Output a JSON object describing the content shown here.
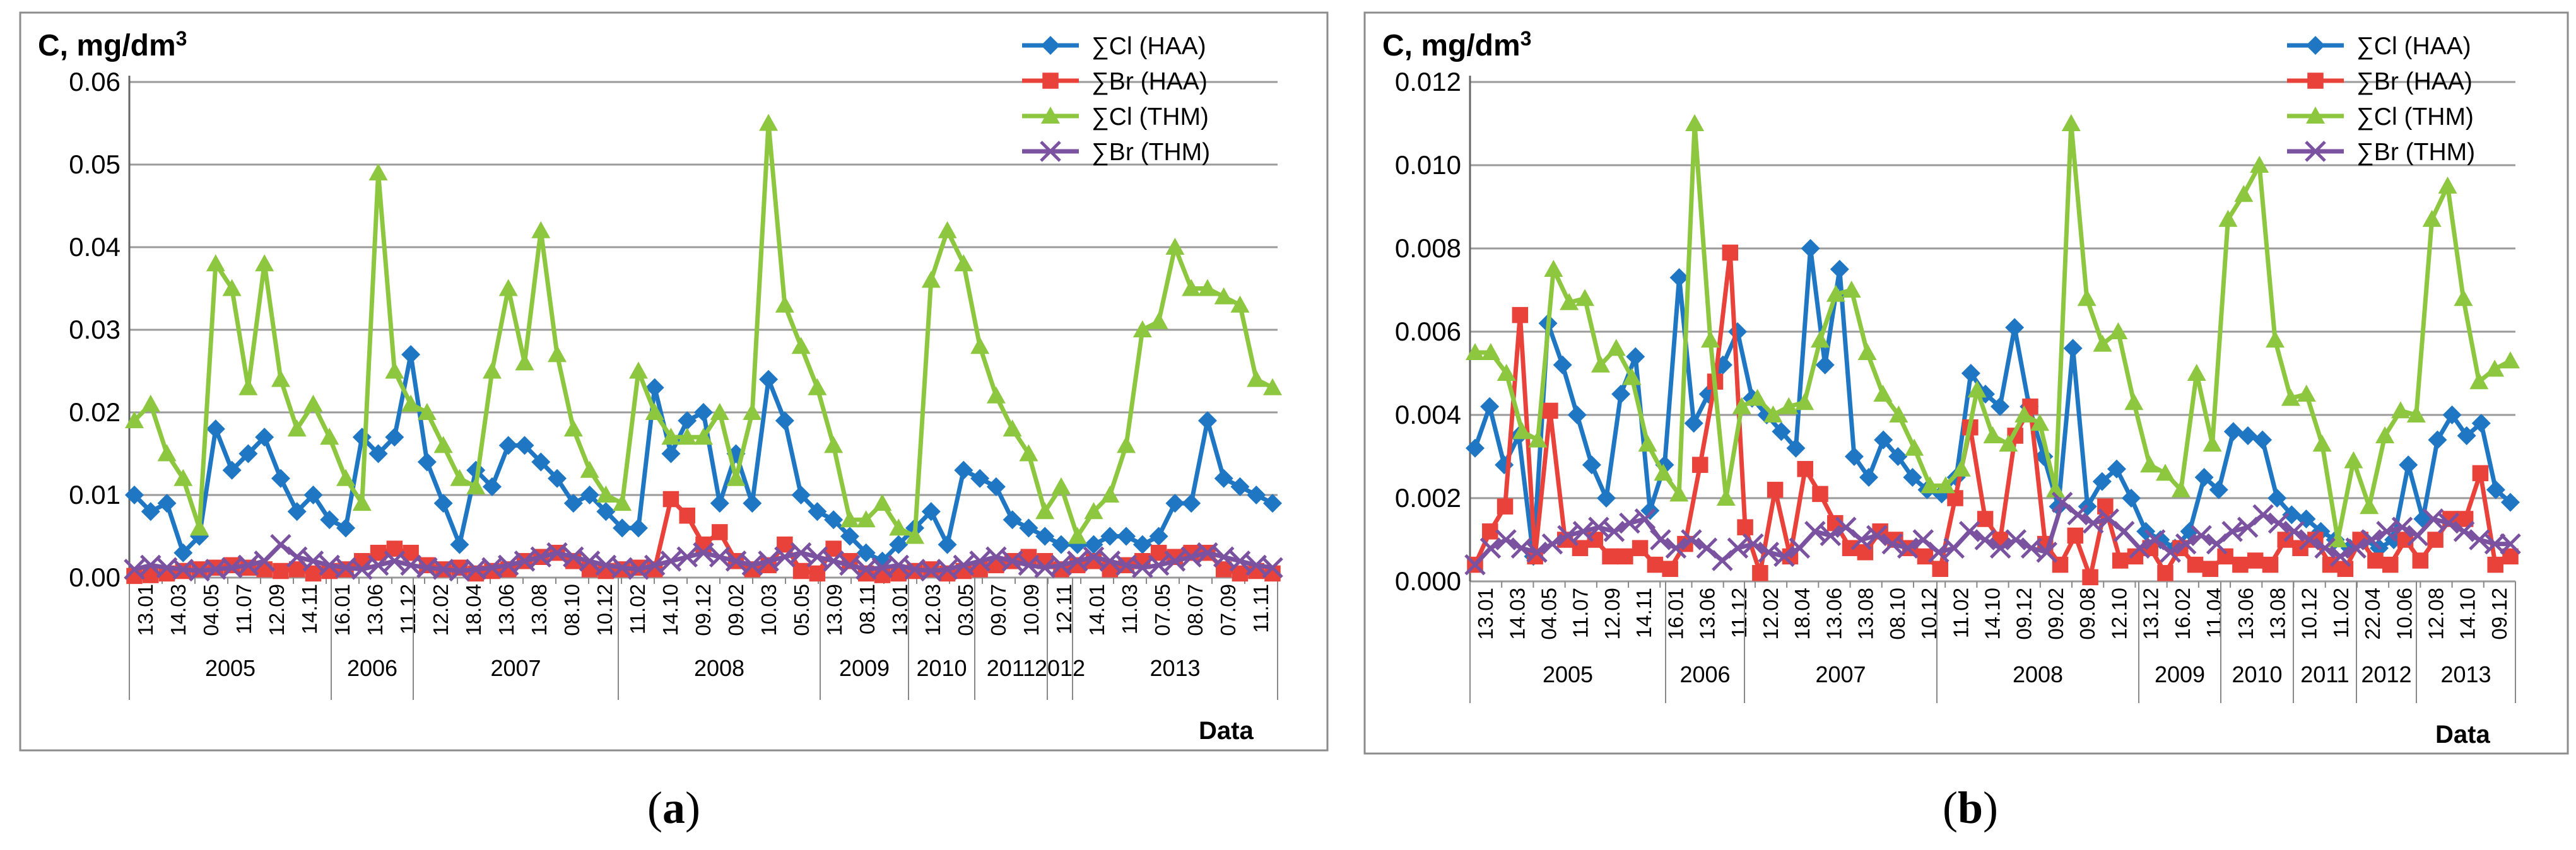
{
  "chart_data": [
    {
      "panel": "a",
      "type": "line",
      "caption": "a",
      "title": "C, mg/dm",
      "title_sup": "3",
      "xlabel": "Data",
      "ylim": [
        0,
        0.06
      ],
      "ytick_labels": [
        "0.00",
        "0.01",
        "0.02",
        "0.03",
        "0.04",
        "0.05",
        "0.06"
      ],
      "grid": true,
      "legend_position": "top-right",
      "x_tick_labels": [
        "13.01",
        "14.03",
        "04.05",
        "11.07",
        "12.09",
        "14.11",
        "16.01",
        "13.06",
        "11.12",
        "12.02",
        "18.04",
        "13.06",
        "13.08",
        "08.10",
        "10.12",
        "11.02",
        "14.10",
        "09.12",
        "09.02",
        "10.03",
        "05.05",
        "13.09",
        "08.11",
        "13.01",
        "12.03",
        "03.05",
        "09.07",
        "10.09",
        "12.11",
        "14.01",
        "11.03",
        "07.05",
        "08.07",
        "07.09",
        "11.11"
      ],
      "year_labels": [
        "2005",
        "2006",
        "2007",
        "2008",
        "2009",
        "2010",
        "2011",
        "2012",
        "2013"
      ],
      "series": [
        {
          "name": "∑Cl (HAA)",
          "color": "#1f77c4",
          "marker": "diamond",
          "values": [
            0.01,
            0.008,
            0.009,
            0.003,
            0.005,
            0.018,
            0.013,
            0.015,
            0.017,
            0.012,
            0.008,
            0.01,
            0.007,
            0.006,
            0.017,
            0.015,
            0.017,
            0.027,
            0.014,
            0.009,
            0.004,
            0.013,
            0.011,
            0.016,
            0.016,
            0.014,
            0.012,
            0.009,
            0.01,
            0.008,
            0.006,
            0.006,
            0.023,
            0.015,
            0.019,
            0.02,
            0.009,
            0.015,
            0.009,
            0.024,
            0.019,
            0.01,
            0.008,
            0.007,
            0.005,
            0.003,
            0.002,
            0.004,
            0.006,
            0.008,
            0.004,
            0.013,
            0.012,
            0.011,
            0.007,
            0.006,
            0.005,
            0.004,
            0.004,
            0.004,
            0.005,
            0.005,
            0.004,
            0.005,
            0.009,
            0.009,
            0.019,
            0.012,
            0.011,
            0.01,
            0.009
          ]
        },
        {
          "name": "∑Br (HAA)",
          "color": "#e8423a",
          "marker": "square",
          "values": [
            0.0002,
            0.0003,
            0.0005,
            0.0008,
            0.001,
            0.0012,
            0.0015,
            0.0012,
            0.001,
            0.0008,
            0.001,
            0.0005,
            0.0008,
            0.001,
            0.002,
            0.003,
            0.0035,
            0.003,
            0.0015,
            0.001,
            0.0012,
            0.0005,
            0.0008,
            0.001,
            0.002,
            0.0025,
            0.003,
            0.002,
            0.001,
            0.0008,
            0.001,
            0.0012,
            0.001,
            0.0095,
            0.0075,
            0.004,
            0.0055,
            0.002,
            0.001,
            0.0015,
            0.004,
            0.0008,
            0.0005,
            0.0035,
            0.002,
            0.0005,
            0.0003,
            0.0005,
            0.0008,
            0.001,
            0.0005,
            0.0008,
            0.001,
            0.0015,
            0.002,
            0.0025,
            0.002,
            0.001,
            0.0015,
            0.002,
            0.001,
            0.0015,
            0.002,
            0.003,
            0.0025,
            0.003,
            0.003,
            0.001,
            0.0005,
            0.0008,
            0.0005
          ]
        },
        {
          "name": "∑Cl (THM)",
          "color": "#8dc63f",
          "marker": "triangle",
          "values": [
            0.019,
            0.021,
            0.015,
            0.012,
            0.006,
            0.038,
            0.035,
            0.023,
            0.038,
            0.024,
            0.018,
            0.021,
            0.017,
            0.012,
            0.009,
            0.049,
            0.025,
            0.021,
            0.02,
            0.016,
            0.012,
            0.011,
            0.025,
            0.035,
            0.026,
            0.042,
            0.027,
            0.018,
            0.013,
            0.01,
            0.009,
            0.025,
            0.02,
            0.017,
            0.017,
            0.017,
            0.02,
            0.012,
            0.02,
            0.055,
            0.033,
            0.028,
            0.023,
            0.016,
            0.007,
            0.007,
            0.009,
            0.006,
            0.005,
            0.036,
            0.042,
            0.038,
            0.028,
            0.022,
            0.018,
            0.015,
            0.008,
            0.011,
            0.005,
            0.008,
            0.01,
            0.016,
            0.03,
            0.031,
            0.04,
            0.035,
            0.035,
            0.034,
            0.033,
            0.024,
            0.023
          ]
        },
        {
          "name": "∑Br (THM)",
          "color": "#7b52a0",
          "marker": "x",
          "values": [
            0.001,
            0.0015,
            0.0012,
            0.001,
            0.0008,
            0.001,
            0.0012,
            0.0015,
            0.002,
            0.004,
            0.0025,
            0.002,
            0.0015,
            0.0012,
            0.001,
            0.0015,
            0.002,
            0.0015,
            0.0012,
            0.001,
            0.0008,
            0.001,
            0.0012,
            0.0015,
            0.002,
            0.0025,
            0.003,
            0.0025,
            0.002,
            0.0015,
            0.0012,
            0.001,
            0.0015,
            0.002,
            0.0025,
            0.003,
            0.0025,
            0.002,
            0.0015,
            0.002,
            0.0025,
            0.003,
            0.0025,
            0.002,
            0.0015,
            0.001,
            0.0012,
            0.0015,
            0.001,
            0.0008,
            0.001,
            0.0015,
            0.002,
            0.0025,
            0.002,
            0.0015,
            0.0012,
            0.0015,
            0.002,
            0.0025,
            0.002,
            0.0015,
            0.0012,
            0.0015,
            0.002,
            0.0025,
            0.003,
            0.0025,
            0.002,
            0.0015,
            0.0012
          ]
        }
      ]
    },
    {
      "panel": "b",
      "type": "line",
      "caption": "b",
      "title": "C, mg/dm",
      "title_sup": "3",
      "xlabel": "Data",
      "ylim": [
        0,
        0.012
      ],
      "ytick_labels": [
        "0.000",
        "0.002",
        "0.004",
        "0.006",
        "0.008",
        "0.010",
        "0.012"
      ],
      "grid": true,
      "legend_position": "top-right",
      "x_tick_labels": [
        "13.01",
        "14.03",
        "04.05",
        "11.07",
        "12.09",
        "14.11",
        "16.01",
        "13.06",
        "11.12",
        "12.02",
        "18.04",
        "13.06",
        "13.08",
        "08.10",
        "10.12",
        "11.02",
        "14.10",
        "09.12",
        "09.02",
        "09.08",
        "12.10",
        "13.12",
        "16.02",
        "11.04",
        "13.06",
        "13.08",
        "10.12",
        "11.02",
        "22.04",
        "10.06",
        "12.08",
        "14.10",
        "09.12"
      ],
      "year_labels": [
        "2005",
        "2006",
        "2007",
        "2008",
        "2009",
        "2010",
        "2011",
        "2012",
        "2013"
      ],
      "series": [
        {
          "name": "∑Cl (HAA)",
          "color": "#1f77c4",
          "marker": "diamond",
          "values": [
            0.0032,
            0.0042,
            0.0028,
            0.0035,
            0.0006,
            0.0062,
            0.0052,
            0.004,
            0.0028,
            0.002,
            0.0045,
            0.0054,
            0.0017,
            0.0028,
            0.0073,
            0.0038,
            0.0045,
            0.0052,
            0.006,
            0.0044,
            0.004,
            0.0036,
            0.0032,
            0.008,
            0.0052,
            0.0075,
            0.003,
            0.0025,
            0.0034,
            0.003,
            0.0025,
            0.0022,
            0.0021,
            0.0025,
            0.005,
            0.0045,
            0.0042,
            0.0061,
            0.0042,
            0.003,
            0.0018,
            0.0056,
            0.0018,
            0.0024,
            0.0027,
            0.002,
            0.0012,
            0.001,
            0.0008,
            0.0012,
            0.0025,
            0.0022,
            0.0036,
            0.0035,
            0.0034,
            0.002,
            0.0016,
            0.0015,
            0.0012,
            0.001,
            0.0008,
            0.001,
            0.0008,
            0.001,
            0.0028,
            0.0015,
            0.0034,
            0.004,
            0.0035,
            0.0038,
            0.0022,
            0.0019
          ]
        },
        {
          "name": "∑Br (HAA)",
          "color": "#e8423a",
          "marker": "square",
          "values": [
            0.0004,
            0.0012,
            0.0018,
            0.0064,
            0.0006,
            0.0041,
            0.001,
            0.0008,
            0.001,
            0.0006,
            0.0006,
            0.0008,
            0.0004,
            0.0003,
            0.0009,
            0.0028,
            0.0048,
            0.0079,
            0.0013,
            0.0002,
            0.0022,
            0.0006,
            0.0027,
            0.0021,
            0.0014,
            0.0008,
            0.0007,
            0.0012,
            0.001,
            0.0008,
            0.0006,
            0.0003,
            0.002,
            0.0037,
            0.0015,
            0.001,
            0.0035,
            0.0042,
            0.0009,
            0.0004,
            0.0011,
            0.0001,
            0.0018,
            0.0005,
            0.0006,
            0.0008,
            0.0002,
            0.0008,
            0.0004,
            0.0003,
            0.0006,
            0.0004,
            0.0005,
            0.0004,
            0.001,
            0.0008,
            0.001,
            0.0004,
            0.0003,
            0.001,
            0.0005,
            0.0004,
            0.001,
            0.0005,
            0.001,
            0.0015,
            0.0015,
            0.0026,
            0.0004,
            0.0006
          ]
        },
        {
          "name": "∑Cl (THM)",
          "color": "#8dc63f",
          "marker": "triangle",
          "values": [
            0.0055,
            0.0055,
            0.005,
            0.0036,
            0.0034,
            0.0075,
            0.0067,
            0.0068,
            0.0052,
            0.0056,
            0.0049,
            0.0033,
            0.0026,
            0.0021,
            0.011,
            0.0058,
            0.002,
            0.0042,
            0.0044,
            0.004,
            0.0042,
            0.0043,
            0.0058,
            0.0069,
            0.007,
            0.0055,
            0.0045,
            0.004,
            0.0032,
            0.0023,
            0.0023,
            0.0027,
            0.0046,
            0.0035,
            0.0033,
            0.004,
            0.0038,
            0.0022,
            0.011,
            0.0068,
            0.0057,
            0.006,
            0.0043,
            0.0028,
            0.0026,
            0.0022,
            0.005,
            0.0033,
            0.0087,
            0.0093,
            0.01,
            0.0058,
            0.0044,
            0.0045,
            0.0033,
            0.001,
            0.0029,
            0.0018,
            0.0035,
            0.0041,
            0.004,
            0.0087,
            0.0095,
            0.0068,
            0.0048,
            0.0051,
            0.0053
          ]
        },
        {
          "name": "∑Br (THM)",
          "color": "#7b52a0",
          "marker": "x",
          "values": [
            0.0004,
            0.0008,
            0.001,
            0.0008,
            0.0007,
            0.0009,
            0.0011,
            0.0012,
            0.0013,
            0.0012,
            0.0014,
            0.0015,
            0.001,
            0.0008,
            0.001,
            0.0008,
            0.0005,
            0.0008,
            0.0009,
            0.0007,
            0.0006,
            0.0008,
            0.0012,
            0.0011,
            0.0013,
            0.001,
            0.0011,
            0.0009,
            0.0008,
            0.001,
            0.0007,
            0.0008,
            0.0012,
            0.001,
            0.0008,
            0.001,
            0.0008,
            0.0007,
            0.0019,
            0.0016,
            0.0014,
            0.0015,
            0.0012,
            0.0008,
            0.001,
            0.0007,
            0.0009,
            0.0011,
            0.0009,
            0.0012,
            0.0013,
            0.0016,
            0.0014,
            0.0012,
            0.001,
            0.0008,
            0.0006,
            0.0008,
            0.001,
            0.0012,
            0.0013,
            0.0011,
            0.0015,
            0.0014,
            0.0012,
            0.001,
            0.0009,
            0.0009
          ]
        }
      ]
    }
  ]
}
